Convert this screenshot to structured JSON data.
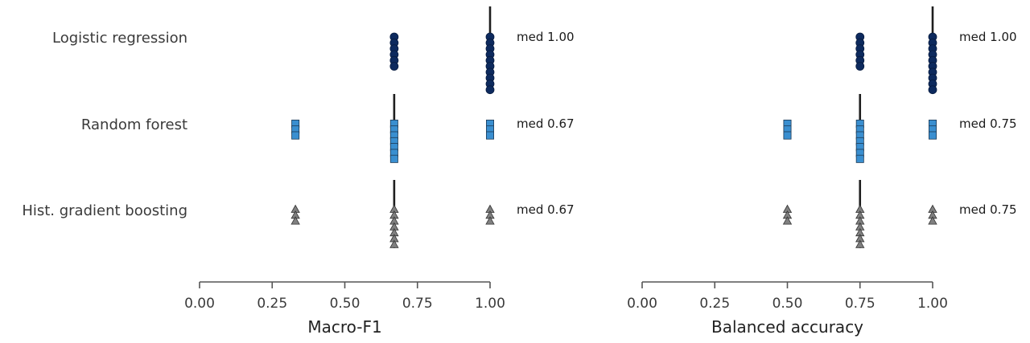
{
  "chart_data": [
    {
      "type": "scatter",
      "xlabel": "Macro-F1",
      "xlim": [
        0,
        1
      ],
      "xticks": [
        "0.00",
        "0.25",
        "0.50",
        "0.75",
        "1.00"
      ],
      "grid": false,
      "series": [
        {
          "name": "Logistic regression",
          "marker": "circle",
          "color": "#0d2a5e",
          "points": [
            {
              "x": 0.67,
              "count": 6
            },
            {
              "x": 1.0,
              "count": 10
            }
          ],
          "median": 1.0,
          "median_label": "med 1.00"
        },
        {
          "name": "Random forest",
          "marker": "square",
          "color": "#3a8fd0",
          "points": [
            {
              "x": 0.33,
              "count": 3
            },
            {
              "x": 0.67,
              "count": 7
            },
            {
              "x": 1.0,
              "count": 3
            }
          ],
          "median": 0.67,
          "median_label": "med 0.67"
        },
        {
          "name": "Hist. gradient boosting",
          "marker": "triangle",
          "color": "#808080",
          "points": [
            {
              "x": 0.33,
              "count": 3
            },
            {
              "x": 0.67,
              "count": 7
            },
            {
              "x": 1.0,
              "count": 3
            }
          ],
          "median": 0.67,
          "median_label": "med 0.67"
        }
      ]
    },
    {
      "type": "scatter",
      "xlabel": "Balanced accuracy",
      "xlim": [
        0,
        1
      ],
      "xticks": [
        "0.00",
        "0.25",
        "0.50",
        "0.75",
        "1.00"
      ],
      "grid": false,
      "series": [
        {
          "name": "Logistic regression",
          "marker": "circle",
          "color": "#0d2a5e",
          "points": [
            {
              "x": 0.75,
              "count": 6
            },
            {
              "x": 1.0,
              "count": 10
            }
          ],
          "median": 1.0,
          "median_label": "med 1.00"
        },
        {
          "name": "Random forest",
          "marker": "square",
          "color": "#3a8fd0",
          "points": [
            {
              "x": 0.5,
              "count": 3
            },
            {
              "x": 0.75,
              "count": 7
            },
            {
              "x": 1.0,
              "count": 3
            }
          ],
          "median": 0.75,
          "median_label": "med 0.75"
        },
        {
          "name": "Hist. gradient boosting",
          "marker": "triangle",
          "color": "#808080",
          "points": [
            {
              "x": 0.5,
              "count": 3
            },
            {
              "x": 0.75,
              "count": 7
            },
            {
              "x": 1.0,
              "count": 3
            }
          ],
          "median": 0.75,
          "median_label": "med 0.75"
        }
      ]
    }
  ],
  "categories": [
    "Logistic regression",
    "Random forest",
    "Hist. gradient boosting"
  ]
}
